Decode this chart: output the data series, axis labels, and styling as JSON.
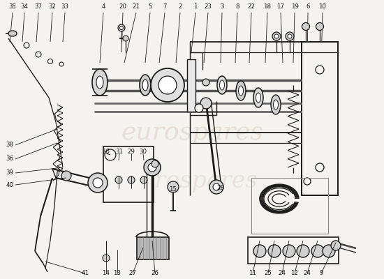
{
  "bg_color": "#f5f3ef",
  "line_color": "#1a1a1a",
  "watermark_color": "#d8cfc4",
  "figsize": [
    5.5,
    4.0
  ],
  "dpi": 100
}
